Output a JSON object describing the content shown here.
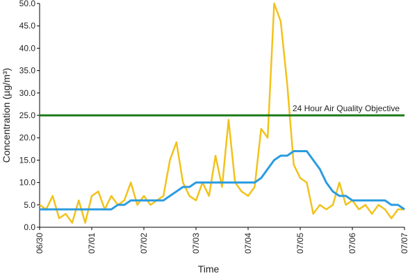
{
  "chart_data": {
    "type": "line",
    "x_label": "Time",
    "y_label": "Concentration (µg/m³)",
    "x": [
      0,
      0.125,
      0.25,
      0.375,
      0.5,
      0.625,
      0.75,
      0.875,
      1,
      1.125,
      1.25,
      1.375,
      1.5,
      1.625,
      1.75,
      1.875,
      2,
      2.125,
      2.25,
      2.375,
      2.5,
      2.625,
      2.75,
      2.875,
      3,
      3.125,
      3.25,
      3.375,
      3.5,
      3.625,
      3.75,
      3.875,
      4,
      4.125,
      4.25,
      4.375,
      4.5,
      4.625,
      4.75,
      4.875,
      5,
      5.125,
      5.25,
      5.375,
      5.5,
      5.625,
      5.75,
      5.875,
      6,
      6.125,
      6.25,
      6.375,
      6.5,
      6.625,
      6.75,
      6.875,
      7
    ],
    "series": [
      {
        "color": "#f2c21a",
        "values": [
          5,
          4,
          7,
          2,
          3,
          1,
          6,
          1,
          7,
          8,
          4,
          7,
          5,
          6,
          10,
          5,
          7,
          5,
          6,
          7,
          15,
          19,
          10,
          7,
          6,
          10,
          7,
          16,
          9,
          24,
          10,
          8,
          7,
          9,
          22,
          20,
          50,
          46,
          32,
          14,
          11,
          10,
          3,
          5,
          4,
          5,
          10,
          5,
          6,
          4,
          5,
          3,
          5,
          4,
          2,
          4,
          4
        ]
      },
      {
        "color": "#2b9be0",
        "values": [
          4,
          4,
          4,
          4,
          4,
          4,
          4,
          4,
          4,
          4,
          4,
          4,
          5,
          5,
          6,
          6,
          6,
          6,
          6,
          6,
          7,
          8,
          9,
          9,
          10,
          10,
          10,
          10,
          10,
          10,
          10,
          10,
          10,
          10,
          11,
          13,
          15,
          16,
          16,
          17,
          17,
          17,
          15,
          13,
          10,
          8,
          7,
          7,
          6,
          6,
          6,
          6,
          6,
          6,
          5,
          5,
          4
        ]
      }
    ],
    "objective": {
      "value": 25,
      "label": "24 Hour Air Quality Objective",
      "color": "#1a7a1a"
    },
    "xlim": [
      0,
      7
    ],
    "xticks": [
      {
        "value": 0,
        "label": "06/30"
      },
      {
        "value": 1,
        "label": "07/01"
      },
      {
        "value": 2,
        "label": "07/02"
      },
      {
        "value": 3,
        "label": "07/03"
      },
      {
        "value": 4,
        "label": "07/04"
      },
      {
        "value": 5,
        "label": "07/05"
      },
      {
        "value": 6,
        "label": "07/06"
      },
      {
        "value": 7,
        "label": "07/07"
      }
    ],
    "ylim": [
      0,
      50
    ],
    "yticks": [
      {
        "value": 0,
        "label": "0.0"
      },
      {
        "value": 5,
        "label": "5.0"
      },
      {
        "value": 10,
        "label": "10.0"
      },
      {
        "value": 15,
        "label": "15.0"
      },
      {
        "value": 20,
        "label": "20.0"
      },
      {
        "value": 25,
        "label": "25.0"
      },
      {
        "value": 30,
        "label": "30.0"
      },
      {
        "value": 35,
        "label": "35.0"
      },
      {
        "value": 40,
        "label": "40.0"
      },
      {
        "value": 45,
        "label": "45.0"
      },
      {
        "value": 50,
        "label": "50.0"
      }
    ]
  }
}
